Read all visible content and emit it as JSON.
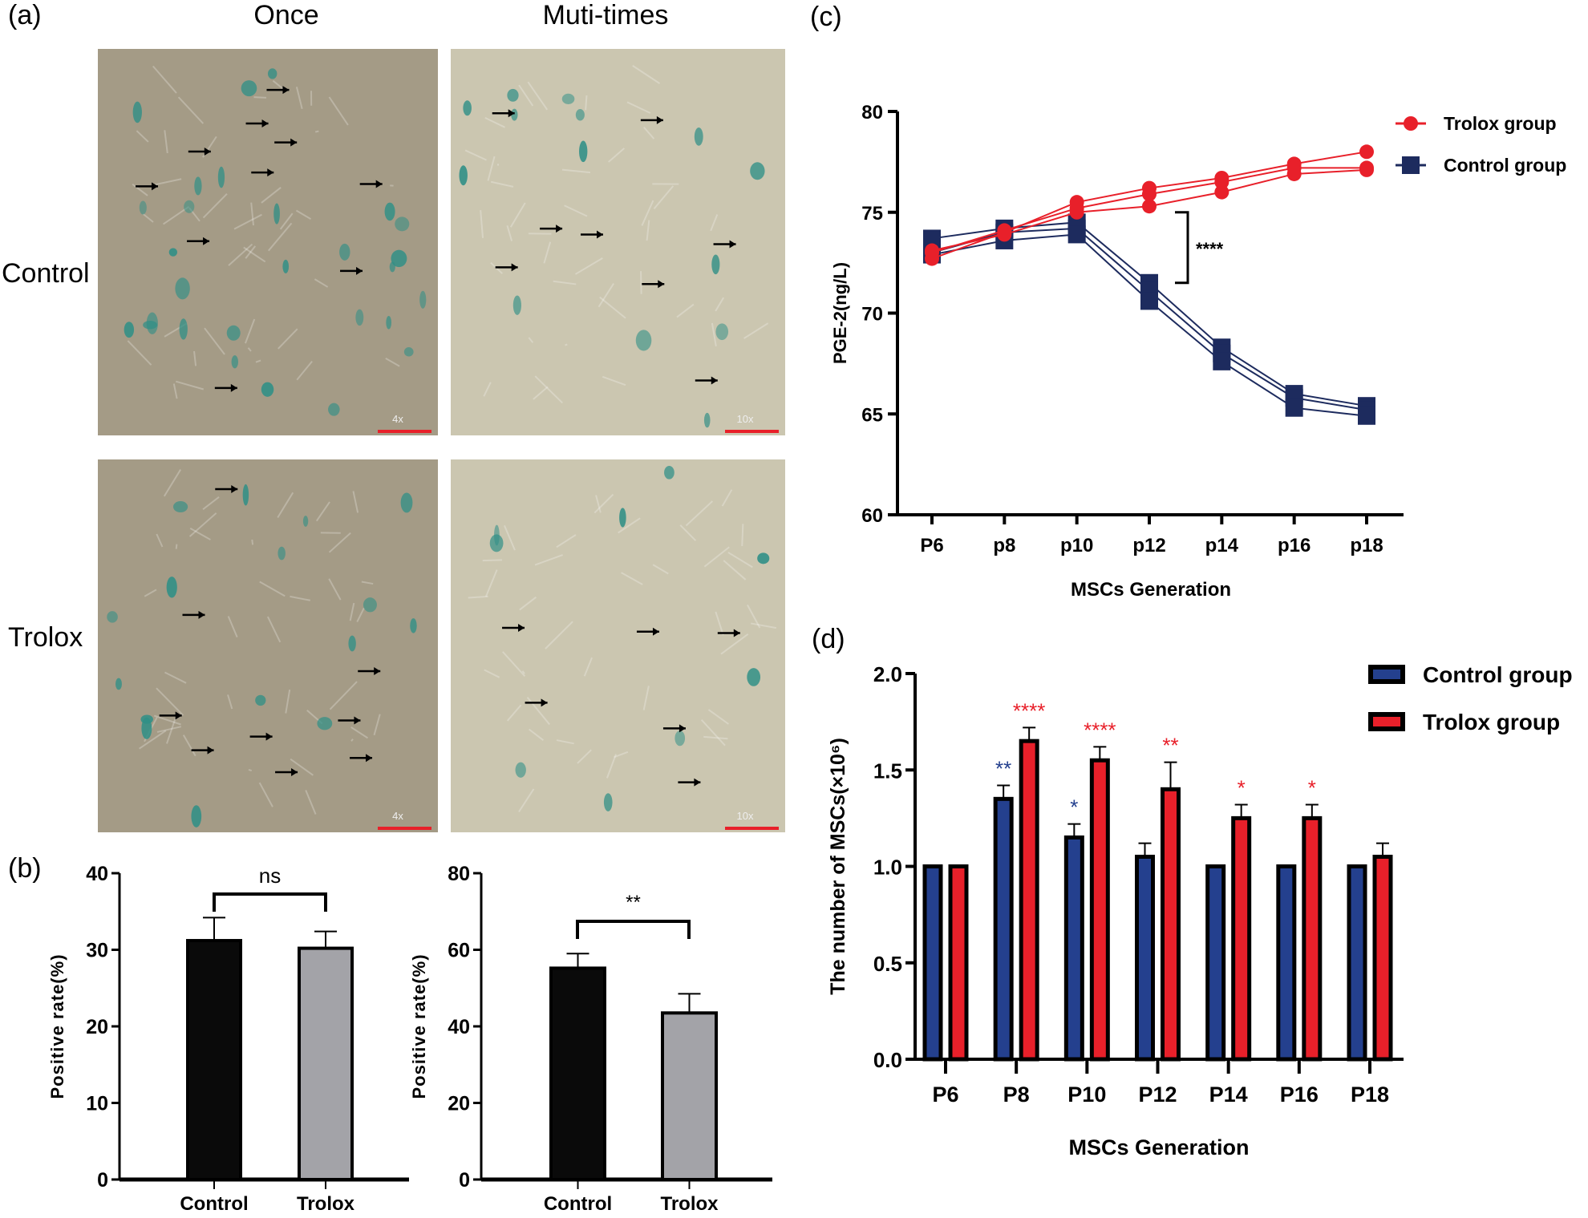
{
  "panel_a": {
    "label": "(a)",
    "col_headers": [
      "Once",
      "Muti-times"
    ],
    "row_headers": [
      "Control",
      "Trolox"
    ],
    "images": [
      {
        "row": "Control",
        "col": "Once",
        "magnification": "4x"
      },
      {
        "row": "Control",
        "col": "Muti-times",
        "magnification": "10x"
      },
      {
        "row": "Trolox",
        "col": "Once",
        "magnification": "4x"
      },
      {
        "row": "Trolox",
        "col": "Muti-times",
        "magnification": "10x"
      }
    ],
    "colors": {
      "once_bg": "#a49b86",
      "multi_bg": "#cbc6b0",
      "stain": "#2f8f86",
      "scale_bar": "#e8202a"
    }
  },
  "panel_b": {
    "label": "(b)"
  },
  "panel_c": {
    "label": "(c)"
  },
  "panel_d": {
    "label": "(d)"
  },
  "chart_data": [
    {
      "id": "b-left",
      "type": "bar",
      "categories": [
        "Control",
        "Trolox"
      ],
      "values": [
        31.2,
        30.2
      ],
      "errors": [
        3.0,
        2.2
      ],
      "colors": [
        "#0a0a0a",
        "#a3a3a8"
      ],
      "ylabel": "Positive rate(%)",
      "ylim": [
        0,
        40
      ],
      "yticks": [
        0,
        10,
        20,
        30,
        40
      ],
      "significance": "ns"
    },
    {
      "id": "b-right",
      "type": "bar",
      "categories": [
        "Control",
        "Trolox"
      ],
      "values": [
        55.2,
        43.5
      ],
      "errors": [
        3.8,
        5.0
      ],
      "colors": [
        "#0a0a0a",
        "#a3a3a8"
      ],
      "ylabel": "Positive rate(%)",
      "ylim": [
        0,
        80
      ],
      "yticks": [
        0,
        20,
        40,
        60,
        80
      ],
      "significance": "**"
    },
    {
      "id": "c",
      "type": "line",
      "categories": [
        "P6",
        "p8",
        "p10",
        "p12",
        "p14",
        "p16",
        "p18"
      ],
      "series": [
        {
          "name": "Trolox  group",
          "color": "#e8202a",
          "marker": "circle",
          "replicates": [
            [
              72.7,
              74.0,
              75.5,
              76.2,
              76.7,
              77.4,
              78.0
            ],
            [
              73.0,
              74.1,
              75.2,
              75.9,
              76.5,
              77.2,
              77.2
            ],
            [
              73.1,
              73.9,
              75.0,
              75.3,
              76.0,
              76.9,
              77.1
            ]
          ]
        },
        {
          "name": "Control group",
          "color": "#1d2b5e",
          "marker": "square",
          "replicates": [
            [
              73.7,
              74.2,
              74.5,
              71.5,
              68.3,
              66.0,
              65.4
            ],
            [
              73.0,
              74.0,
              74.2,
              71.1,
              68.0,
              65.8,
              65.2
            ],
            [
              72.9,
              73.6,
              73.9,
              70.6,
              67.6,
              65.3,
              64.9
            ]
          ]
        }
      ],
      "xlabel": "MSCs Generation",
      "ylabel": "PGE-2(ng/L)",
      "ylim": [
        60,
        80
      ],
      "yticks": [
        60,
        65,
        70,
        75,
        80
      ],
      "significance": "****",
      "legend": "top-right"
    },
    {
      "id": "d",
      "type": "bar",
      "categories": [
        "P6",
        "P8",
        "P10",
        "P12",
        "P14",
        "P16",
        "P18"
      ],
      "series": [
        {
          "name": "Control group",
          "color": "#24408e",
          "values": [
            1.0,
            1.35,
            1.15,
            1.05,
            1.0,
            1.0,
            1.0
          ],
          "errors": [
            0,
            0.07,
            0.07,
            0.07,
            0,
            0,
            0
          ],
          "significance": [
            "",
            "**",
            "*",
            "",
            "",
            "",
            ""
          ]
        },
        {
          "name": "Trolox group",
          "color": "#e8202a",
          "values": [
            1.0,
            1.65,
            1.55,
            1.4,
            1.25,
            1.25,
            1.05
          ],
          "errors": [
            0,
            0.07,
            0.07,
            0.14,
            0.07,
            0.07,
            0.07
          ],
          "significance": [
            "",
            "****",
            "****",
            "**",
            "*",
            "*",
            ""
          ]
        }
      ],
      "xlabel": "MSCs Generation",
      "ylabel": "The number of MSCs(×10⁶)",
      "ylim": [
        0,
        2.0
      ],
      "yticks": [
        "0.0",
        "0.5",
        "1.0",
        "1.5",
        "2.0"
      ],
      "legend": "top-right"
    }
  ]
}
